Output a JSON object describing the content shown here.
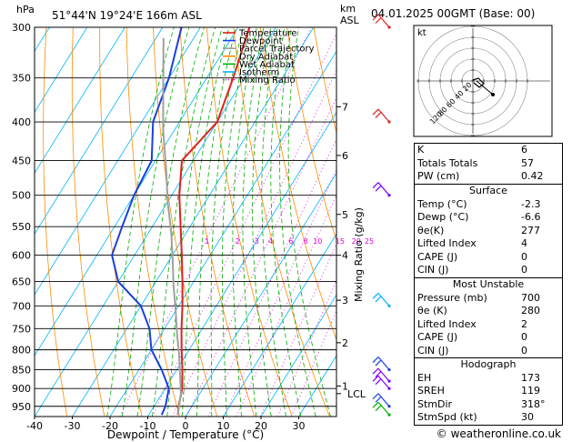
{
  "header": {
    "location": "51°44'N 19°24'E 166m ASL",
    "datetime": "04.01.2025 00GMT (Base: 00)",
    "p_unit": "hPa",
    "km_label": "km",
    "asl_label": "ASL"
  },
  "legend": [
    {
      "label": "Temperature",
      "color": "#e02020",
      "style": "solid"
    },
    {
      "label": "Dewpoint",
      "color": "#1a3fe0",
      "style": "solid"
    },
    {
      "label": "Parcel Trajectory",
      "color": "#a0a0a0",
      "style": "solid"
    },
    {
      "label": "Dry Adiabat",
      "color": "#ff8c00",
      "style": "solid"
    },
    {
      "label": "Wet Adiabat",
      "color": "#00b000",
      "style": "solid"
    },
    {
      "label": "Isotherm",
      "color": "#00b4ff",
      "style": "solid"
    },
    {
      "label": "Mixing Ratio",
      "color": "#e000e0",
      "style": "dotted"
    }
  ],
  "chart_data": {
    "type": "line",
    "xlabel": "Dewpoint / Temperature (°C)",
    "ylabel_right": "Mixing Ratio (g/kg)",
    "xlim": [
      -40,
      40
    ],
    "ylim_hpa": [
      300,
      980
    ],
    "x_ticks": [
      -40,
      -30,
      -20,
      -10,
      0,
      10,
      20,
      30
    ],
    "pressure_levels": [
      300,
      350,
      400,
      450,
      500,
      550,
      600,
      650,
      700,
      750,
      800,
      850,
      900,
      950
    ],
    "altitude_km": [
      {
        "km": "1",
        "p": 893
      },
      {
        "km": "2",
        "p": 783
      },
      {
        "km": "3",
        "p": 688
      },
      {
        "km": "4",
        "p": 600
      },
      {
        "km": "5",
        "p": 530
      },
      {
        "km": "6",
        "p": 443
      },
      {
        "km": "7",
        "p": 382
      }
    ],
    "lcl": {
      "label": "LCL",
      "p": 914
    },
    "mixing_ratio_labels": [
      "1",
      "2",
      "3",
      "4",
      "6",
      "8",
      "10",
      "15",
      "20",
      "25"
    ],
    "mixing_ratio_values": [
      1,
      2,
      3,
      4,
      6,
      8,
      10,
      15,
      20,
      25
    ],
    "series": [
      {
        "name": "Temperature",
        "color": "#e02020",
        "points": [
          [
            -2.3,
            975
          ],
          [
            -3.5,
            950
          ],
          [
            -5.5,
            900
          ],
          [
            -8.5,
            850
          ],
          [
            -12,
            800
          ],
          [
            -15.5,
            750
          ],
          [
            -19,
            700
          ],
          [
            -23,
            650
          ],
          [
            -27.5,
            600
          ],
          [
            -32.5,
            550
          ],
          [
            -38,
            500
          ],
          [
            -43,
            450
          ],
          [
            -40,
            400
          ],
          [
            -43,
            350
          ],
          [
            -47,
            300
          ]
        ]
      },
      {
        "name": "Dewpoint",
        "color": "#1a3fe0",
        "points": [
          [
            -6.6,
            975
          ],
          [
            -7,
            950
          ],
          [
            -9,
            900
          ],
          [
            -14,
            850
          ],
          [
            -20,
            800
          ],
          [
            -24,
            750
          ],
          [
            -30,
            700
          ],
          [
            -40,
            650
          ],
          [
            -46,
            600
          ],
          [
            -48,
            550
          ],
          [
            -50,
            500
          ],
          [
            -51,
            450
          ],
          [
            -57,
            400
          ],
          [
            -60,
            350
          ],
          [
            -65,
            300
          ]
        ]
      },
      {
        "name": "Parcel Trajectory",
        "color": "#a0a0a0",
        "points": [
          [
            -2.3,
            975
          ],
          [
            -5,
            914
          ],
          [
            -8.5,
            860
          ],
          [
            -12,
            810
          ],
          [
            -16,
            760
          ],
          [
            -20,
            710
          ],
          [
            -24.5,
            660
          ],
          [
            -29,
            610
          ],
          [
            -34,
            560
          ],
          [
            -40,
            510
          ],
          [
            -46,
            460
          ],
          [
            -53,
            410
          ],
          [
            -60,
            360
          ],
          [
            -68,
            310
          ]
        ]
      }
    ]
  },
  "hodograph": {
    "label": "kt",
    "rings": [
      "20",
      "40",
      "60",
      "80",
      "120"
    ]
  },
  "indices": [
    {
      "label": "K",
      "value": "6"
    },
    {
      "label": "Totals Totals",
      "value": "57"
    },
    {
      "label": "PW (cm)",
      "value": "0.42"
    }
  ],
  "surface": {
    "title": "Surface",
    "rows": [
      {
        "label": "Temp (°C)",
        "value": "-2.3"
      },
      {
        "label": "Dewp (°C)",
        "value": "-6.6"
      },
      {
        "label": "θe(K)",
        "value": "277"
      },
      {
        "label": "Lifted Index",
        "value": "4"
      },
      {
        "label": "CAPE (J)",
        "value": "0"
      },
      {
        "label": "CIN (J)",
        "value": "0"
      }
    ]
  },
  "most_unstable": {
    "title": "Most Unstable",
    "rows": [
      {
        "label": "Pressure (mb)",
        "value": "700"
      },
      {
        "label": "θe (K)",
        "value": "280"
      },
      {
        "label": "Lifted Index",
        "value": "2"
      },
      {
        "label": "CAPE (J)",
        "value": "0"
      },
      {
        "label": "CIN (J)",
        "value": "0"
      }
    ]
  },
  "hodograph_stats": {
    "title": "Hodograph",
    "rows": [
      {
        "label": "EH",
        "value": "173"
      },
      {
        "label": "SREH",
        "value": "119"
      },
      {
        "label": "StmDir",
        "value": "318°"
      },
      {
        "label": "StmSpd (kt)",
        "value": "30"
      }
    ]
  },
  "footer": "© weatheronline.co.uk"
}
